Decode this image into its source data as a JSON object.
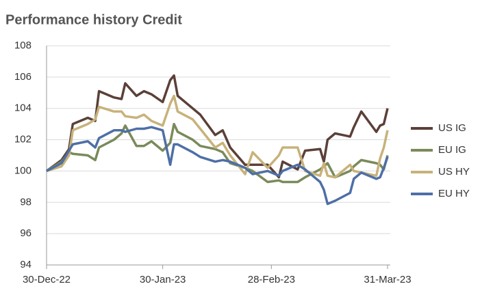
{
  "chart_data": {
    "type": "line",
    "title": "Performance history Credit",
    "x": [
      "2022-12-30",
      "2023-01-03",
      "2023-01-05",
      "2023-01-06",
      "2023-01-10",
      "2023-01-12",
      "2023-01-13",
      "2023-01-17",
      "2023-01-19",
      "2023-01-20",
      "2023-01-23",
      "2023-01-25",
      "2023-01-27",
      "2023-01-30",
      "2023-02-01",
      "2023-02-02",
      "2023-02-03",
      "2023-02-07",
      "2023-02-09",
      "2023-02-13",
      "2023-02-15",
      "2023-02-17",
      "2023-02-21",
      "2023-02-23",
      "2023-02-27",
      "2023-03-02",
      "2023-03-03",
      "2023-03-07",
      "2023-03-09",
      "2023-03-13",
      "2023-03-14",
      "2023-03-15",
      "2023-03-17",
      "2023-03-21",
      "2023-03-22",
      "2023-03-24",
      "2023-03-28",
      "2023-03-29",
      "2023-03-30",
      "2023-03-31"
    ],
    "series": [
      {
        "name": "US IG",
        "color": "#5b4038",
        "values": [
          100,
          100.7,
          101.4,
          103.0,
          103.4,
          103.2,
          105.1,
          104.7,
          104.6,
          105.6,
          104.8,
          105.1,
          104.9,
          104.4,
          105.8,
          106.1,
          104.8,
          104.0,
          103.6,
          102.3,
          102.6,
          101.5,
          100.4,
          100.4,
          100.4,
          99.6,
          100.6,
          100.1,
          101.3,
          101.4,
          100.6,
          102.0,
          102.4,
          102.2,
          102.8,
          103.8,
          102.5,
          102.9,
          103.0,
          104.0
        ]
      },
      {
        "name": "EU IG",
        "color": "#7a8a5a",
        "values": [
          100,
          100.6,
          101.2,
          101.1,
          101.0,
          100.7,
          101.5,
          102.0,
          102.4,
          102.9,
          101.6,
          101.6,
          101.9,
          101.3,
          101.8,
          103.0,
          102.5,
          102.0,
          101.6,
          101.4,
          101.2,
          100.5,
          100.2,
          100.0,
          99.3,
          99.4,
          99.3,
          99.3,
          99.6,
          100.1,
          100.3,
          100.5,
          99.6,
          100.0,
          100.3,
          100.7,
          100.5,
          100.4,
          100.1,
          101.0
        ]
      },
      {
        "name": "US HY",
        "color": "#c8b27a",
        "values": [
          100,
          100.3,
          101.0,
          102.6,
          103.0,
          103.3,
          104.1,
          103.8,
          103.8,
          103.5,
          103.4,
          103.6,
          103.2,
          102.9,
          104.3,
          104.8,
          103.8,
          103.3,
          102.7,
          101.5,
          101.8,
          101.0,
          99.8,
          101.2,
          100.2,
          101.0,
          101.5,
          101.5,
          100.0,
          99.7,
          100.5,
          99.7,
          99.6,
          100.4,
          100.0,
          99.9,
          99.7,
          100.8,
          101.5,
          102.6
        ]
      },
      {
        "name": "EU HY",
        "color": "#4e6fa6",
        "values": [
          100,
          100.5,
          101.3,
          101.7,
          101.9,
          101.5,
          102.1,
          102.6,
          102.6,
          102.5,
          102.7,
          102.7,
          102.8,
          102.6,
          100.4,
          101.7,
          101.7,
          101.2,
          100.9,
          100.6,
          100.7,
          100.6,
          100.2,
          99.8,
          100.0,
          99.7,
          100.0,
          100.4,
          100.1,
          99.3,
          98.8,
          97.9,
          98.1,
          98.6,
          99.5,
          99.9,
          99.5,
          99.6,
          100.2,
          100.9
        ]
      }
    ],
    "xlim": [
      "2022-12-30",
      "2023-03-31"
    ],
    "xticks": [
      {
        "value": "2022-12-30",
        "label": "30-Dec-22"
      },
      {
        "value": "2023-01-30",
        "label": "30-Jan-23"
      },
      {
        "value": "2023-02-28",
        "label": "28-Feb-23"
      },
      {
        "value": "2023-03-31",
        "label": "31-Mar-23"
      }
    ],
    "ylim": [
      94,
      108
    ],
    "yticks": [
      94,
      96,
      98,
      100,
      102,
      104,
      106,
      108
    ],
    "grid": true,
    "legend": "right"
  }
}
